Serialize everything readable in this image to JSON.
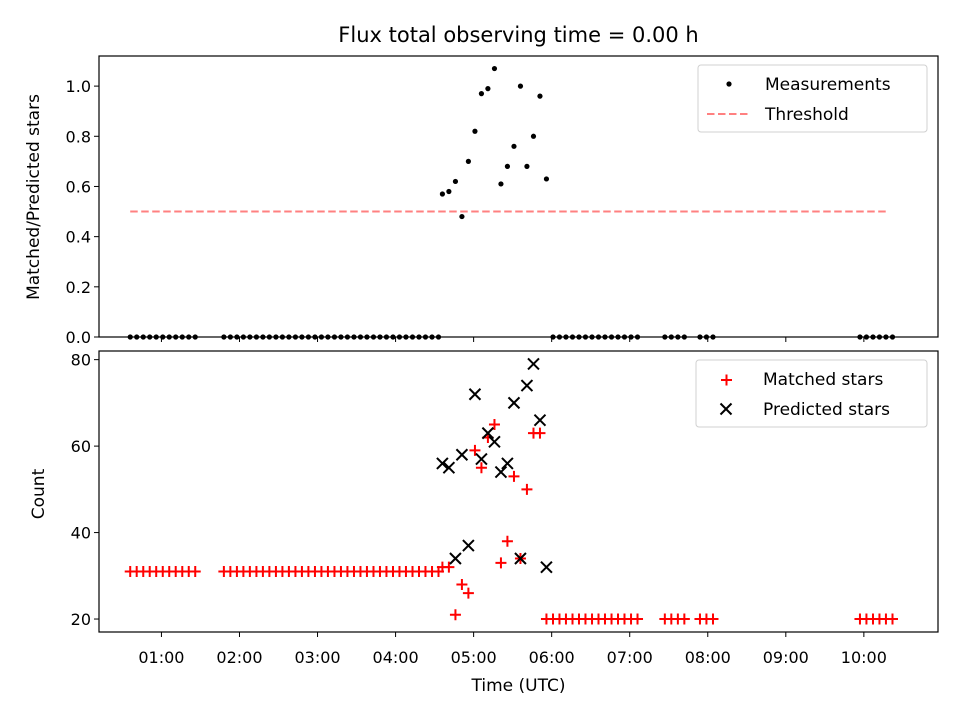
{
  "chart_data": [
    {
      "type": "scatter",
      "title": "Flux total observing time = 0.00 h",
      "xlabel": "",
      "ylabel": "Matched/Predicted stars",
      "xlim": [
        0.2,
        10.95
      ],
      "ylim": [
        0,
        1.12
      ],
      "yticks": [
        0.0,
        0.2,
        0.4,
        0.6,
        0.8,
        1.0
      ],
      "ytick_labels": [
        "0.0",
        "0.2",
        "0.4",
        "0.6",
        "0.8",
        "1.0"
      ],
      "grid": false,
      "legend_position": "top-right",
      "series": [
        {
          "name": "Measurements",
          "marker": "dot",
          "color": "#000000",
          "x": [
            0.6,
            0.683,
            0.767,
            0.85,
            0.933,
            1.017,
            1.1,
            1.183,
            1.267,
            1.35,
            1.433,
            1.8,
            1.883,
            1.967,
            2.05,
            2.133,
            2.217,
            2.3,
            2.383,
            2.467,
            2.55,
            2.633,
            2.717,
            2.8,
            2.883,
            2.967,
            3.05,
            3.133,
            3.217,
            3.3,
            3.383,
            3.467,
            3.55,
            3.633,
            3.717,
            3.8,
            3.883,
            3.967,
            4.05,
            4.133,
            4.217,
            4.3,
            4.383,
            4.467,
            4.55,
            4.6,
            4.683,
            4.767,
            4.85,
            4.933,
            5.017,
            5.1,
            5.183,
            5.267,
            5.35,
            5.433,
            5.517,
            5.6,
            5.683,
            5.767,
            5.85,
            5.933,
            6.017,
            6.1,
            6.183,
            6.267,
            6.35,
            6.433,
            6.517,
            6.6,
            6.683,
            6.767,
            6.85,
            6.933,
            7.017,
            7.1,
            7.45,
            7.533,
            7.617,
            7.7,
            7.9,
            7.983,
            8.067,
            9.95,
            10.033,
            10.117,
            10.2,
            10.283,
            10.367
          ],
          "y": [
            0,
            0,
            0,
            0,
            0,
            0,
            0,
            0,
            0,
            0,
            0,
            0,
            0,
            0,
            0,
            0,
            0,
            0,
            0,
            0,
            0,
            0,
            0,
            0,
            0,
            0,
            0,
            0,
            0,
            0,
            0,
            0,
            0,
            0,
            0,
            0,
            0,
            0,
            0,
            0,
            0,
            0,
            0,
            0,
            0,
            0.57,
            0.58,
            0.62,
            0.48,
            0.7,
            0.82,
            0.97,
            0.99,
            1.07,
            0.61,
            0.68,
            0.76,
            1.0,
            0.68,
            0.8,
            0.96,
            0.63,
            0,
            0,
            0,
            0,
            0,
            0,
            0,
            0,
            0,
            0,
            0,
            0,
            0,
            0,
            0,
            0,
            0,
            0,
            0,
            0,
            0,
            0,
            0,
            0,
            0,
            0,
            0
          ]
        },
        {
          "name": "Threshold",
          "style": "dashed-line",
          "color": "#ff8080",
          "x": [
            0.6,
            10.3
          ],
          "y": [
            0.5,
            0.5
          ]
        }
      ]
    },
    {
      "type": "scatter",
      "title": "",
      "xlabel": "Time (UTC)",
      "ylabel": "Count",
      "xlim": [
        0.2,
        10.95
      ],
      "ylim": [
        17,
        82
      ],
      "xticks": [
        1,
        2,
        3,
        4,
        5,
        6,
        7,
        8,
        9,
        10
      ],
      "xtick_labels": [
        "01:00",
        "02:00",
        "03:00",
        "04:00",
        "05:00",
        "06:00",
        "07:00",
        "08:00",
        "09:00",
        "10:00"
      ],
      "yticks": [
        20,
        40,
        60,
        80
      ],
      "ytick_labels": [
        "20",
        "40",
        "60",
        "80"
      ],
      "grid": false,
      "legend_position": "top-right",
      "series": [
        {
          "name": "Matched stars",
          "marker": "plus",
          "color": "#ff0000",
          "x": [
            0.6,
            0.683,
            0.767,
            0.85,
            0.933,
            1.017,
            1.1,
            1.183,
            1.267,
            1.35,
            1.433,
            1.8,
            1.883,
            1.967,
            2.05,
            2.133,
            2.217,
            2.3,
            2.383,
            2.467,
            2.55,
            2.633,
            2.717,
            2.8,
            2.883,
            2.967,
            3.05,
            3.133,
            3.217,
            3.3,
            3.383,
            3.467,
            3.55,
            3.633,
            3.717,
            3.8,
            3.883,
            3.967,
            4.05,
            4.133,
            4.217,
            4.3,
            4.383,
            4.467,
            4.55,
            4.6,
            4.683,
            4.767,
            4.85,
            4.933,
            5.017,
            5.1,
            5.183,
            5.267,
            5.35,
            5.433,
            5.517,
            5.6,
            5.683,
            5.767,
            5.85,
            5.933,
            6.017,
            6.1,
            6.183,
            6.267,
            6.35,
            6.433,
            6.517,
            6.6,
            6.683,
            6.767,
            6.85,
            6.933,
            7.017,
            7.1,
            7.45,
            7.533,
            7.617,
            7.7,
            7.9,
            7.983,
            8.067,
            9.95,
            10.033,
            10.117,
            10.2,
            10.283,
            10.367
          ],
          "y": [
            31,
            31,
            31,
            31,
            31,
            31,
            31,
            31,
            31,
            31,
            31,
            31,
            31,
            31,
            31,
            31,
            31,
            31,
            31,
            31,
            31,
            31,
            31,
            31,
            31,
            31,
            31,
            31,
            31,
            31,
            31,
            31,
            31,
            31,
            31,
            31,
            31,
            31,
            31,
            31,
            31,
            31,
            31,
            31,
            31,
            32,
            32,
            21,
            28,
            26,
            59,
            55,
            62,
            65,
            33,
            38,
            53,
            34,
            50,
            63,
            63,
            20,
            20,
            20,
            20,
            20,
            20,
            20,
            20,
            20,
            20,
            20,
            20,
            20,
            20,
            20,
            20,
            20,
            20,
            20,
            20,
            20,
            20,
            20,
            20,
            20,
            20,
            20,
            20
          ]
        },
        {
          "name": "Predicted stars",
          "marker": "x",
          "color": "#000000",
          "x": [
            4.6,
            4.683,
            4.767,
            4.85,
            4.933,
            5.017,
            5.1,
            5.183,
            5.267,
            5.35,
            5.433,
            5.517,
            5.6,
            5.683,
            5.767,
            5.85,
            5.933
          ],
          "y": [
            56,
            55,
            34,
            58,
            37,
            72,
            57,
            63,
            61,
            54,
            56,
            70,
            34,
            74,
            79,
            66,
            32
          ]
        }
      ]
    }
  ]
}
